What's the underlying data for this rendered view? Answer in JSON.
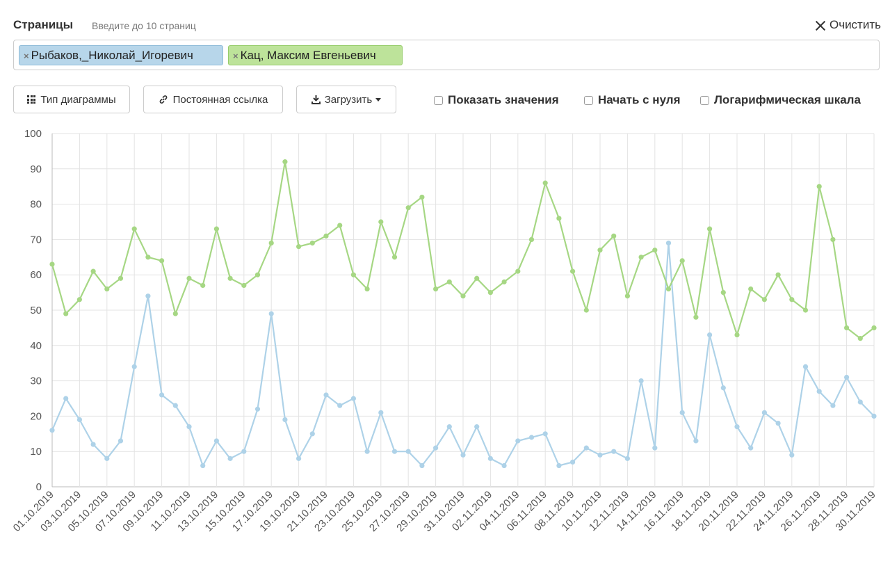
{
  "header": {
    "pages_label": "Страницы",
    "pages_hint": "Введите до 10 страниц",
    "clear_label": "Очистить"
  },
  "tags": [
    {
      "label": "Рыбаков,_Николай_Игоревич",
      "color": "#b7d6ea"
    },
    {
      "label": "Кац, Максим Евгеньевич",
      "color": "#bde39a"
    }
  ],
  "toolbar": {
    "chart_type_label": "Тип диаграммы",
    "permalink_label": "Постоянная ссылка",
    "download_label": "Загрузить",
    "show_values_label": "Показать значения",
    "start_zero_label": "Начать с нуля",
    "log_scale_label": "Логарифмическая шкала"
  },
  "chart_data": {
    "type": "line",
    "ylim": [
      0,
      100
    ],
    "yticks": [
      0,
      10,
      20,
      30,
      40,
      50,
      60,
      70,
      80,
      90,
      100
    ],
    "grid": true,
    "x_tick_labels": [
      "01.10.2019",
      "03.10.2019",
      "05.10.2019",
      "07.10.2019",
      "09.10.2019",
      "11.10.2019",
      "13.10.2019",
      "15.10.2019",
      "17.10.2019",
      "19.10.2019",
      "21.10.2019",
      "23.10.2019",
      "25.10.2019",
      "27.10.2019",
      "29.10.2019",
      "31.10.2019",
      "02.11.2019",
      "04.11.2019",
      "06.11.2019",
      "08.11.2019",
      "10.11.2019",
      "12.11.2019",
      "14.11.2019",
      "16.11.2019",
      "18.11.2019",
      "20.11.2019",
      "22.11.2019",
      "24.11.2019",
      "26.11.2019",
      "28.11.2019",
      "30.11.2019"
    ],
    "series": [
      {
        "name": "Рыбаков,_Николай_Игоревич",
        "color": "#aed2e8",
        "values": [
          16,
          25,
          19,
          12,
          8,
          13,
          34,
          54,
          26,
          23,
          17,
          6,
          13,
          8,
          10,
          22,
          49,
          19,
          8,
          15,
          26,
          23,
          25,
          10,
          21,
          10,
          10,
          6,
          11,
          17,
          9,
          17,
          8,
          6,
          13,
          14,
          15,
          6,
          7,
          11,
          9,
          10,
          8,
          30,
          11,
          69,
          21,
          13,
          43,
          28,
          17,
          11,
          21,
          18,
          9,
          34,
          27,
          23,
          31,
          24,
          20
        ]
      },
      {
        "name": "Кац, Максим Евгеньевич",
        "color": "#a6d784",
        "values": [
          63,
          49,
          53,
          61,
          56,
          59,
          73,
          65,
          64,
          49,
          59,
          57,
          73,
          59,
          57,
          60,
          69,
          92,
          68,
          69,
          71,
          74,
          60,
          56,
          75,
          65,
          79,
          82,
          56,
          58,
          54,
          59,
          55,
          58,
          61,
          70,
          86,
          76,
          61,
          50,
          67,
          71,
          54,
          65,
          67,
          56,
          64,
          48,
          73,
          55,
          43,
          56,
          53,
          60,
          53,
          50,
          85,
          70,
          45,
          42,
          45
        ]
      }
    ]
  }
}
